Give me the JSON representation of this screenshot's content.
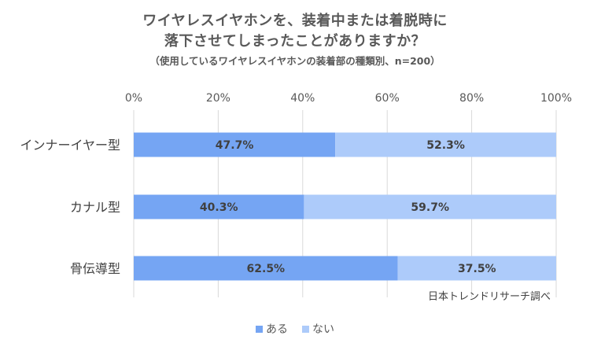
{
  "title": {
    "line1": "ワイヤレスイヤホンを、装着中または着脱時に",
    "line2": "落下させてしまったことがありますか？",
    "subtitle": "（使用しているワイヤレスイヤホンの装着部の種類別、n=200）"
  },
  "source": "日本トレンドリサーチ調べ",
  "colors": {
    "aru": "#75a5f3",
    "nai": "#adcbfa",
    "grid": "#d9d9d9",
    "text": "#404040"
  },
  "chart_data": {
    "type": "bar",
    "orientation": "horizontal",
    "stacked": true,
    "categories": [
      "インナーイヤー型",
      "カナル型",
      "骨伝導型"
    ],
    "series": [
      {
        "name": "ある",
        "values": [
          47.7,
          40.3,
          62.5
        ],
        "labels": [
          "47.7%",
          "40.3%",
          "62.5%"
        ]
      },
      {
        "name": "ない",
        "values": [
          52.3,
          59.7,
          37.5
        ],
        "labels": [
          "52.3%",
          "59.7%",
          "37.5%"
        ]
      }
    ],
    "xlim": [
      0,
      100
    ],
    "xticks": [
      "0%",
      "20%",
      "40%",
      "60%",
      "80%",
      "100%"
    ],
    "grid": true,
    "legend_position": "bottom"
  }
}
